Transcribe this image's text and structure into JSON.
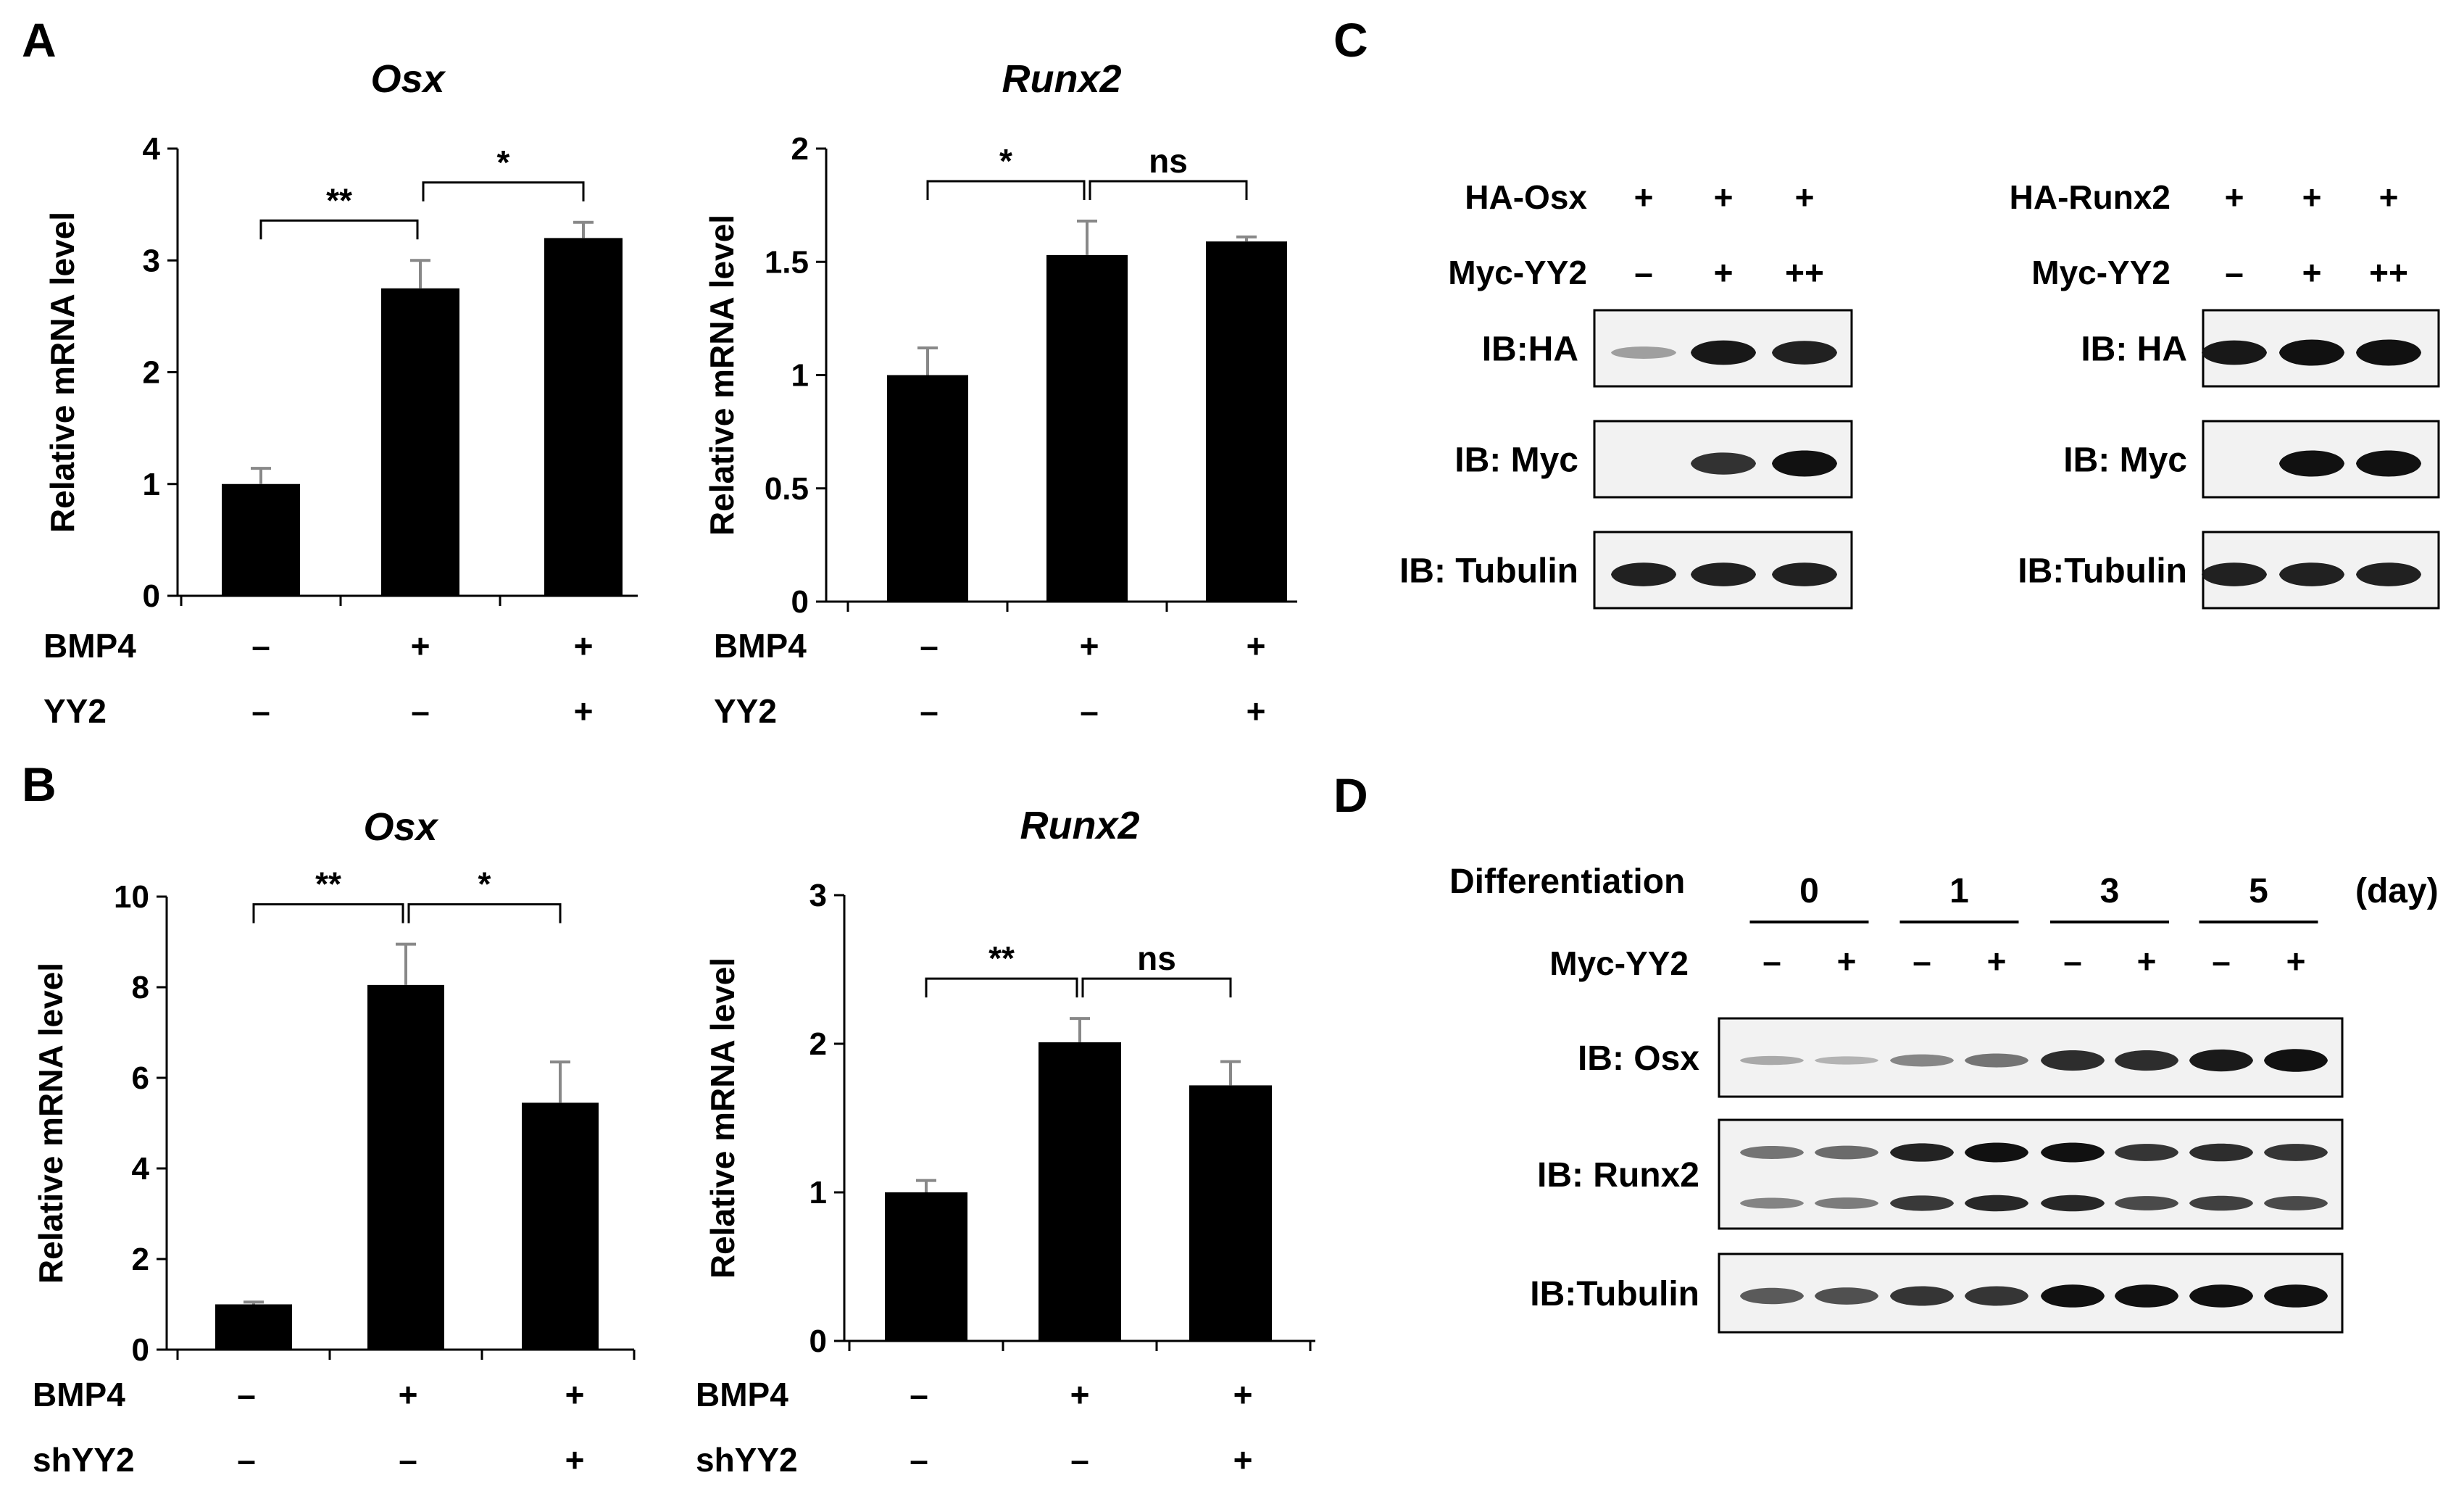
{
  "panels": {
    "A": "A",
    "B": "B",
    "C": "C",
    "D": "D"
  },
  "colors": {
    "bar": "#000000",
    "error_bar": "#888888",
    "text": "#000000",
    "blot_background": "#f2f2f2",
    "band": "#111111"
  },
  "chart_data": [
    {
      "id": "A-osx",
      "type": "bar",
      "title": "Osx",
      "ylabel": "Relative mRNA level",
      "ylim": [
        0,
        4
      ],
      "yticks": [
        "0",
        "1",
        "2",
        "3",
        "4"
      ],
      "values": [
        1.0,
        2.75,
        3.2
      ],
      "errors": [
        0.14,
        0.25,
        0.14
      ],
      "conditions": [
        {
          "label": "BMP4",
          "values": [
            "–",
            "+",
            "+"
          ]
        },
        {
          "label": "YY2",
          "values": [
            "–",
            "–",
            "+"
          ]
        }
      ],
      "significance": [
        {
          "from": 0,
          "to": 1,
          "text": "**"
        },
        {
          "from": 1,
          "to": 2,
          "text": "*"
        }
      ]
    },
    {
      "id": "A-runx2",
      "type": "bar",
      "title": "Runx2",
      "ylabel": "Relative mRNA level",
      "ylim": [
        0,
        2
      ],
      "yticks": [
        "0",
        "0.5",
        "1",
        "1.5",
        "2"
      ],
      "values": [
        1.0,
        1.53,
        1.59
      ],
      "errors": [
        0.12,
        0.15,
        0.02
      ],
      "conditions": [
        {
          "label": "BMP4",
          "values": [
            "–",
            "+",
            "+"
          ]
        },
        {
          "label": "YY2",
          "values": [
            "–",
            "–",
            "+"
          ]
        }
      ],
      "significance": [
        {
          "from": 0,
          "to": 1,
          "text": "*"
        },
        {
          "from": 1,
          "to": 2,
          "text": "ns"
        }
      ]
    },
    {
      "id": "B-osx",
      "type": "bar",
      "title": "Osx",
      "ylabel": "Relative mRNA level",
      "ylim": [
        0,
        10
      ],
      "yticks": [
        "0",
        "2",
        "4",
        "6",
        "8",
        "10"
      ],
      "values": [
        1.0,
        8.05,
        5.45
      ],
      "errors": [
        0.05,
        0.9,
        0.9
      ],
      "conditions": [
        {
          "label": "BMP4",
          "values": [
            "–",
            "+",
            "+"
          ]
        },
        {
          "label": "shYY2",
          "values": [
            "–",
            "–",
            "+"
          ]
        }
      ],
      "significance": [
        {
          "from": 0,
          "to": 1,
          "text": "**"
        },
        {
          "from": 1,
          "to": 2,
          "text": "*"
        }
      ]
    },
    {
      "id": "B-runx2",
      "type": "bar",
      "title": "Runx2",
      "ylabel": "Relative mRNA level",
      "ylim": [
        0,
        3
      ],
      "yticks": [
        "0",
        "1",
        "2",
        "3"
      ],
      "values": [
        1.0,
        2.01,
        1.72
      ],
      "errors": [
        0.08,
        0.16,
        0.16
      ],
      "conditions": [
        {
          "label": "BMP4",
          "values": [
            "–",
            "+",
            "+"
          ]
        },
        {
          "label": "shYY2",
          "values": [
            "–",
            "–",
            "+"
          ]
        }
      ],
      "significance": [
        {
          "from": 0,
          "to": 1,
          "text": "**"
        },
        {
          "from": 1,
          "to": 2,
          "text": "ns"
        }
      ]
    }
  ],
  "blots": {
    "C_left": {
      "rows": [
        {
          "label": "HA-Osx",
          "values": [
            "+",
            "+",
            "+"
          ]
        },
        {
          "label": "Myc-YY2",
          "values": [
            "–",
            "+",
            "++"
          ]
        }
      ],
      "blots": [
        {
          "label": "IB:HA",
          "intensity": [
            0.15,
            0.9,
            0.85
          ]
        },
        {
          "label": "IB: Myc",
          "intensity": [
            0.0,
            0.75,
            1.0
          ]
        },
        {
          "label": "IB: Tubulin",
          "intensity": [
            0.85,
            0.85,
            0.85
          ]
        }
      ]
    },
    "C_right": {
      "rows": [
        {
          "label": "HA-Runx2",
          "values": [
            "+",
            "+",
            "+"
          ]
        },
        {
          "label": "Myc-YY2",
          "values": [
            "–",
            "+",
            "++"
          ]
        }
      ],
      "blots": [
        {
          "label": "IB: HA",
          "intensity": [
            0.9,
            1.0,
            1.0
          ]
        },
        {
          "label": "IB: Myc",
          "intensity": [
            0.0,
            1.0,
            1.0
          ]
        },
        {
          "label": "IB:Tubulin",
          "intensity": [
            0.85,
            0.85,
            0.85
          ]
        }
      ]
    },
    "D": {
      "title": "Differentiation",
      "days": [
        "0",
        "1",
        "3",
        "5"
      ],
      "unit": "(day)",
      "myc_label": "Myc-YY2",
      "myc_values": [
        "–",
        "+",
        "–",
        "+",
        "–",
        "+",
        "–",
        "+"
      ],
      "blots": [
        {
          "label": "IB: Osx",
          "intensity": [
            0.15,
            0.1,
            0.35,
            0.45,
            0.85,
            0.85,
            0.95,
            1.0
          ]
        },
        {
          "label": "IB: Runx2",
          "intensity": [
            0.45,
            0.5,
            0.9,
            1.0,
            1.0,
            0.8,
            0.85,
            0.8
          ]
        },
        {
          "label": "IB:Tubulin",
          "intensity": [
            0.6,
            0.65,
            0.8,
            0.8,
            1.0,
            1.0,
            1.0,
            1.0
          ]
        }
      ]
    }
  }
}
